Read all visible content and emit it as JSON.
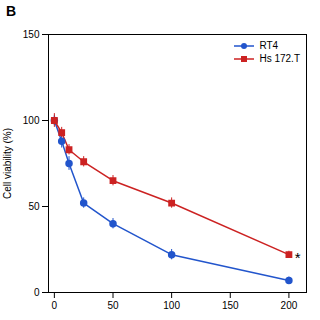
{
  "chart_data": {
    "type": "line",
    "title": "B",
    "ylabel": "Cell viability (%)",
    "xlim": [
      -5,
      215
    ],
    "ylim": [
      0,
      150
    ],
    "xticks": [
      0,
      50,
      100,
      150,
      200
    ],
    "yticks": [
      0,
      50,
      100,
      150
    ],
    "x": [
      0,
      6.25,
      12.5,
      25,
      50,
      100,
      200
    ],
    "series": [
      {
        "name": "RT4",
        "color": "#2255cc",
        "marker": "circle",
        "values": [
          100,
          88,
          75,
          52,
          40,
          22,
          7
        ],
        "errors": [
          3,
          4,
          4,
          3,
          3,
          3,
          2
        ]
      },
      {
        "name": "Hs 172.T",
        "color": "#cc2222",
        "marker": "square",
        "values": [
          100,
          93,
          83,
          76,
          65,
          52,
          22
        ],
        "errors": [
          4,
          3,
          3,
          3,
          3,
          3,
          2
        ]
      }
    ],
    "legend": "upper right",
    "annotations": [
      {
        "text": "*",
        "x": 205,
        "y": 20
      }
    ]
  }
}
